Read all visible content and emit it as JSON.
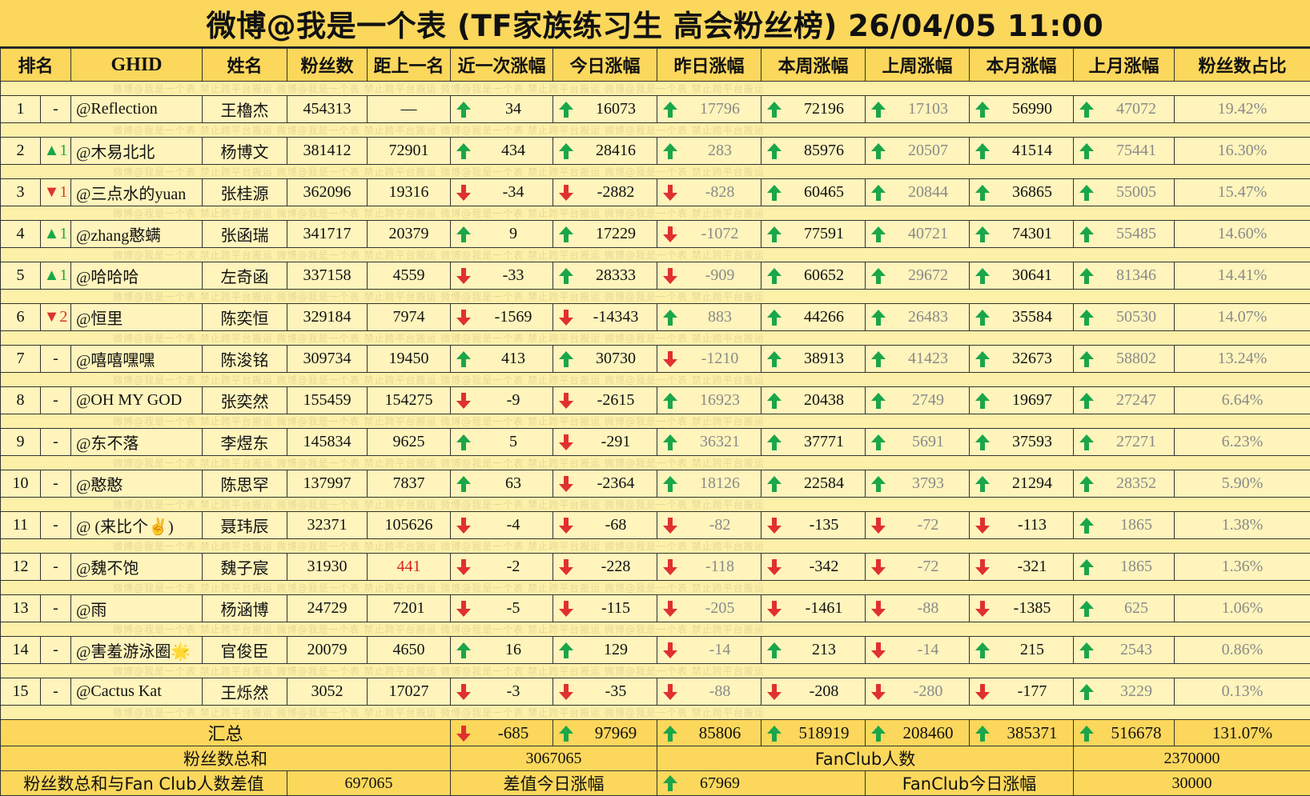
{
  "title": "微博@我是一个表 (TF家族练习生 高会粉丝榜) 26/04/05 11:00",
  "watermark": "微博@我是一个表    禁止跨平台搬运    微博@我是一个表    禁止跨平台搬运    微博@我是一个表    禁止跨平台搬运    微博@我是一个表    禁止跨平台搬运",
  "colors": {
    "header_bg": "#fbd75c",
    "body_bg": "#fef4bc",
    "up": "#1aa64a",
    "down": "#d33",
    "highlight_red": "#d32020"
  },
  "headers": [
    "排名",
    "GHID",
    "姓名",
    "粉丝数",
    "距上一名",
    "近一次涨幅",
    "今日涨幅",
    "昨日涨幅",
    "本周涨幅",
    "上周涨幅",
    "本月涨幅",
    "上月涨幅",
    "粉丝数占比"
  ],
  "rows": [
    {
      "rank": "1",
      "chg": "-",
      "chg_dir": "none",
      "ghid": "@Reflection",
      "name": "王櫓杰",
      "fans": "454313",
      "gap": "—",
      "recent": "34",
      "today": "16073",
      "yesterday": "17796",
      "week": "72196",
      "lastweek": "17103",
      "month": "56990",
      "lastmonth": "47072",
      "pct": "19.42%"
    },
    {
      "rank": "2",
      "chg": "▲1",
      "chg_dir": "up",
      "ghid": "@木易北北",
      "name": "杨博文",
      "fans": "381412",
      "gap": "72901",
      "recent": "434",
      "today": "28416",
      "yesterday": "283",
      "week": "85976",
      "lastweek": "20507",
      "month": "41514",
      "lastmonth": "75441",
      "pct": "16.30%"
    },
    {
      "rank": "3",
      "chg": "▼1",
      "chg_dir": "down",
      "ghid": "@三点水的yuan",
      "name": "张桂源",
      "fans": "362096",
      "gap": "19316",
      "recent": "-34",
      "today": "-2882",
      "yesterday": "-828",
      "week": "60465",
      "lastweek": "20844",
      "month": "36865",
      "lastmonth": "55005",
      "pct": "15.47%"
    },
    {
      "rank": "4",
      "chg": "▲1",
      "chg_dir": "up",
      "ghid": "@zhang憨螨",
      "name": "张函瑞",
      "fans": "341717",
      "gap": "20379",
      "recent": "9",
      "today": "17229",
      "yesterday": "-1072",
      "week": "77591",
      "lastweek": "40721",
      "month": "74301",
      "lastmonth": "55485",
      "pct": "14.60%"
    },
    {
      "rank": "5",
      "chg": "▲1",
      "chg_dir": "up",
      "ghid": "@哈哈哈",
      "name": "左奇函",
      "fans": "337158",
      "gap": "4559",
      "recent": "-33",
      "today": "28333",
      "yesterday": "-909",
      "week": "60652",
      "lastweek": "29672",
      "month": "30641",
      "lastmonth": "81346",
      "pct": "14.41%"
    },
    {
      "rank": "6",
      "chg": "▼2",
      "chg_dir": "down",
      "ghid": "@恒里",
      "name": "陈奕恒",
      "fans": "329184",
      "gap": "7974",
      "recent": "-1569",
      "today": "-14343",
      "yesterday": "883",
      "week": "44266",
      "lastweek": "26483",
      "month": "35584",
      "lastmonth": "50530",
      "pct": "14.07%"
    },
    {
      "rank": "7",
      "chg": "-",
      "chg_dir": "none",
      "ghid": "@嘻嘻嘿嘿",
      "name": "陈浚铭",
      "fans": "309734",
      "gap": "19450",
      "recent": "413",
      "today": "30730",
      "yesterday": "-1210",
      "week": "38913",
      "lastweek": "41423",
      "month": "32673",
      "lastmonth": "58802",
      "pct": "13.24%"
    },
    {
      "rank": "8",
      "chg": "-",
      "chg_dir": "none",
      "ghid": "@OH MY GOD",
      "name": "张奕然",
      "fans": "155459",
      "gap": "154275",
      "recent": "-9",
      "today": "-2615",
      "yesterday": "16923",
      "week": "20438",
      "lastweek": "2749",
      "month": "19697",
      "lastmonth": "27247",
      "pct": "6.64%"
    },
    {
      "rank": "9",
      "chg": "-",
      "chg_dir": "none",
      "ghid": "@东不落",
      "name": "李煜东",
      "fans": "145834",
      "gap": "9625",
      "recent": "5",
      "today": "-291",
      "yesterday": "36321",
      "week": "37771",
      "lastweek": "5691",
      "month": "37593",
      "lastmonth": "27271",
      "pct": "6.23%"
    },
    {
      "rank": "10",
      "chg": "-",
      "chg_dir": "none",
      "ghid": "@憨憨",
      "name": "陈思罕",
      "fans": "137997",
      "gap": "7837",
      "recent": "63",
      "today": "-2364",
      "yesterday": "18126",
      "week": "22584",
      "lastweek": "3793",
      "month": "21294",
      "lastmonth": "28352",
      "pct": "5.90%"
    },
    {
      "rank": "11",
      "chg": "-",
      "chg_dir": "none",
      "ghid": "@ (来比个✌)",
      "name": "聂玮辰",
      "fans": "32371",
      "gap": "105626",
      "recent": "-4",
      "today": "-68",
      "yesterday": "-82",
      "week": "-135",
      "lastweek": "-72",
      "month": "-113",
      "lastmonth": "1865",
      "pct": "1.38%"
    },
    {
      "rank": "12",
      "chg": "-",
      "chg_dir": "none",
      "ghid": "@魏不饱",
      "name": "魏子宸",
      "fans": "31930",
      "gap": "441",
      "gap_red": true,
      "recent": "-2",
      "today": "-228",
      "yesterday": "-118",
      "week": "-342",
      "lastweek": "-72",
      "month": "-321",
      "lastmonth": "1865",
      "pct": "1.36%"
    },
    {
      "rank": "13",
      "chg": "-",
      "chg_dir": "none",
      "ghid": "@雨",
      "name": "杨涵博",
      "fans": "24729",
      "gap": "7201",
      "recent": "-5",
      "today": "-115",
      "yesterday": "-205",
      "week": "-1461",
      "lastweek": "-88",
      "month": "-1385",
      "lastmonth": "625",
      "pct": "1.06%"
    },
    {
      "rank": "14",
      "chg": "-",
      "chg_dir": "none",
      "ghid": "@害羞游泳圈🌟",
      "name": "官俊臣",
      "fans": "20079",
      "gap": "4650",
      "recent": "16",
      "today": "129",
      "yesterday": "-14",
      "week": "213",
      "lastweek": "-14",
      "month": "215",
      "lastmonth": "2543",
      "pct": "0.86%"
    },
    {
      "rank": "15",
      "chg": "-",
      "chg_dir": "none",
      "ghid": "@Cactus Kat",
      "name": "王烁然",
      "fans": "3052",
      "gap": "17027",
      "recent": "-3",
      "today": "-35",
      "yesterday": "-88",
      "week": "-208",
      "lastweek": "-280",
      "month": "-177",
      "lastmonth": "3229",
      "pct": "0.13%"
    }
  ],
  "summary": {
    "label": "汇总",
    "recent": "-685",
    "today": "97969",
    "yesterday": "85806",
    "week": "518919",
    "lastweek": "208460",
    "month": "385371",
    "lastmonth": "516678",
    "pct": "131.07%"
  },
  "footer": {
    "fans_total_label": "粉丝数总和",
    "fans_total": "3067065",
    "fanclub_label": "FanClub人数",
    "fanclub_count": "2370000",
    "diff_label": "粉丝数总和与Fan Club人数差值",
    "diff_value": "697065",
    "diff_today_label": "差值今日涨幅",
    "diff_today": "67969",
    "fanclub_today_label": "FanClub今日涨幅",
    "fanclub_today": "30000"
  }
}
